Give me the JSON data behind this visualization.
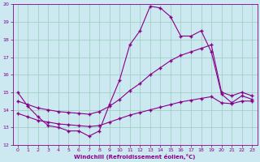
{
  "xlabel": "Windchill (Refroidissement éolien,°C)",
  "bg_color": "#cce8f0",
  "line_color": "#880088",
  "grid_color": "#99ccbb",
  "xlim": [
    -0.5,
    23.5
  ],
  "ylim": [
    12,
    20
  ],
  "xticks": [
    0,
    1,
    2,
    3,
    4,
    5,
    6,
    7,
    8,
    9,
    10,
    11,
    12,
    13,
    14,
    15,
    16,
    17,
    18,
    19,
    20,
    21,
    22,
    23
  ],
  "yticks": [
    12,
    13,
    14,
    15,
    16,
    17,
    18,
    19,
    20
  ],
  "line1_x": [
    0,
    1,
    2,
    3,
    4,
    5,
    6,
    7,
    8,
    9,
    10,
    11,
    12,
    13,
    14,
    15,
    16,
    17,
    18,
    19,
    20,
    21,
    22,
    23
  ],
  "line1_y": [
    15.0,
    14.2,
    13.6,
    13.1,
    13.0,
    12.8,
    12.8,
    12.5,
    12.8,
    14.3,
    15.7,
    17.7,
    18.5,
    19.9,
    19.8,
    19.3,
    18.2,
    18.2,
    18.5,
    17.3,
    14.9,
    14.4,
    14.8,
    14.6
  ],
  "line2_x": [
    0,
    1,
    2,
    3,
    4,
    5,
    6,
    7,
    8,
    9,
    10,
    11,
    12,
    13,
    14,
    15,
    16,
    17,
    18,
    19,
    20,
    21,
    22,
    23
  ],
  "line2_y": [
    13.8,
    13.6,
    13.4,
    13.3,
    13.2,
    13.15,
    13.1,
    13.05,
    13.1,
    13.3,
    13.5,
    13.7,
    13.85,
    14.0,
    14.15,
    14.3,
    14.45,
    14.55,
    14.65,
    14.75,
    14.4,
    14.35,
    14.5,
    14.5
  ],
  "line3_x": [
    0,
    1,
    2,
    3,
    4,
    5,
    6,
    7,
    8,
    9,
    10,
    11,
    12,
    13,
    14,
    15,
    16,
    17,
    18,
    19,
    20,
    21,
    22,
    23
  ],
  "line3_y": [
    14.5,
    14.3,
    14.1,
    14.0,
    13.9,
    13.85,
    13.8,
    13.75,
    13.9,
    14.2,
    14.6,
    15.1,
    15.5,
    16.0,
    16.4,
    16.8,
    17.1,
    17.3,
    17.5,
    17.7,
    15.0,
    14.8,
    15.0,
    14.8
  ],
  "marker": "+",
  "markersize": 3.5,
  "linewidth": 0.8
}
